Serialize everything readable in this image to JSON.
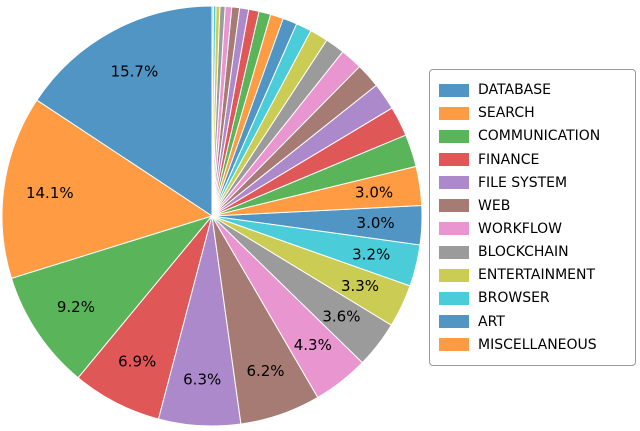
{
  "chart_data": {
    "type": "pie",
    "title": "",
    "start_angle": 90,
    "direction": "counterclockwise",
    "label_distance": 0.78,
    "min_labeled_value": 3.0,
    "edge_color": "#ffffff",
    "text_color": "#000000",
    "legend_position": "right",
    "palette": [
      "#5095c4",
      "#ff9b43",
      "#5ab55a",
      "#df5757",
      "#ac89cb",
      "#a57b73",
      "#e995d0",
      "#9b9b9b",
      "#cbcc53",
      "#4accd9"
    ],
    "legend": {
      "entries": [
        "DATABASE",
        "SEARCH",
        "COMMUNICATION",
        "FINANCE",
        "FILE SYSTEM",
        "WEB",
        "WORKFLOW",
        "BLOCKCHAIN",
        "ENTERTAINMENT",
        "BROWSER",
        "ART",
        "MISCELLANEOUS"
      ]
    },
    "slices": [
      {
        "label": "DATABASE",
        "value": 15.7,
        "pct_label": "15.7%"
      },
      {
        "label": "SEARCH",
        "value": 14.1,
        "pct_label": "14.1%"
      },
      {
        "label": "COMMUNICATION",
        "value": 9.2,
        "pct_label": "9.2%"
      },
      {
        "label": "FINANCE",
        "value": 6.9,
        "pct_label": "6.9%"
      },
      {
        "label": "FILE SYSTEM",
        "value": 6.3,
        "pct_label": "6.3%"
      },
      {
        "label": "WEB",
        "value": 6.2,
        "pct_label": "6.2%"
      },
      {
        "label": "WORKFLOW",
        "value": 4.3,
        "pct_label": "4.3%"
      },
      {
        "label": "BLOCKCHAIN",
        "value": 3.6,
        "pct_label": "3.6%"
      },
      {
        "label": "ENTERTAINMENT",
        "value": 3.3,
        "pct_label": "3.3%"
      },
      {
        "label": "BROWSER",
        "value": 3.2,
        "pct_label": "3.2%"
      },
      {
        "label": "ART",
        "value": 3.0,
        "pct_label": "3.0%"
      },
      {
        "label": "MISCELLANEOUS",
        "value": 3.0,
        "pct_label": "3.0%"
      },
      {
        "label": "",
        "value": 2.5,
        "pct_label": ""
      },
      {
        "label": "",
        "value": 2.3,
        "pct_label": ""
      },
      {
        "label": "",
        "value": 2.1,
        "pct_label": ""
      },
      {
        "label": "",
        "value": 1.9,
        "pct_label": ""
      },
      {
        "label": "",
        "value": 1.7,
        "pct_label": ""
      },
      {
        "label": "",
        "value": 1.5,
        "pct_label": ""
      },
      {
        "label": "",
        "value": 1.4,
        "pct_label": ""
      },
      {
        "label": "",
        "value": 1.2,
        "pct_label": ""
      },
      {
        "label": "",
        "value": 1.1,
        "pct_label": ""
      },
      {
        "label": "",
        "value": 1.0,
        "pct_label": ""
      },
      {
        "label": "",
        "value": 0.9,
        "pct_label": ""
      },
      {
        "label": "",
        "value": 0.8,
        "pct_label": ""
      },
      {
        "label": "",
        "value": 0.7,
        "pct_label": ""
      },
      {
        "label": "",
        "value": 0.6,
        "pct_label": ""
      },
      {
        "label": "",
        "value": 0.5,
        "pct_label": ""
      },
      {
        "label": "",
        "value": 0.4,
        "pct_label": ""
      },
      {
        "label": "",
        "value": 0.3,
        "pct_label": ""
      },
      {
        "label": "",
        "value": 0.2,
        "pct_label": ""
      },
      {
        "label": "",
        "value": 0.1,
        "pct_label": ""
      }
    ]
  }
}
